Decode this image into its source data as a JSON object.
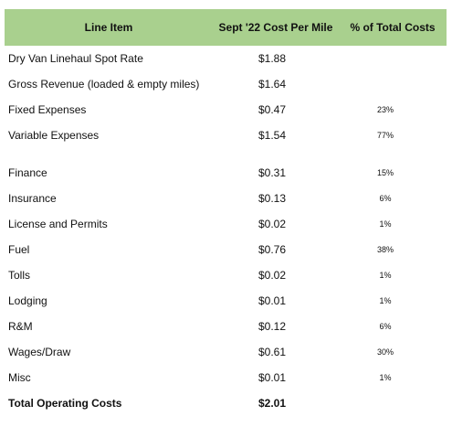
{
  "table": {
    "headers": [
      "Line Item",
      "Sept '22 Cost Per Mile",
      "% of Total Costs"
    ],
    "rows_top": [
      {
        "item": "Dry Van Linehaul Spot Rate",
        "cost": "$1.88",
        "pct": ""
      },
      {
        "item": "Gross Revenue (loaded & empty miles)",
        "cost": "$1.64",
        "pct": ""
      },
      {
        "item": "Fixed Expenses",
        "cost": "$0.47",
        "pct": "23%"
      },
      {
        "item": "Variable Expenses",
        "cost": "$1.54",
        "pct": "77%"
      }
    ],
    "rows_detail": [
      {
        "item": "Finance",
        "cost": "$0.31",
        "pct": "15%"
      },
      {
        "item": "Insurance",
        "cost": "$0.13",
        "pct": "6%"
      },
      {
        "item": "License and Permits",
        "cost": "$0.02",
        "pct": "1%"
      },
      {
        "item": "Fuel",
        "cost": "$0.76",
        "pct": "38%"
      },
      {
        "item": "Tolls",
        "cost": "$0.02",
        "pct": "1%"
      },
      {
        "item": "Lodging",
        "cost": "$0.01",
        "pct": "1%"
      },
      {
        "item": "R&M",
        "cost": "$0.12",
        "pct": "6%"
      },
      {
        "item": "Wages/Draw",
        "cost": "$0.61",
        "pct": "30%"
      },
      {
        "item": "Misc",
        "cost": "$0.01",
        "pct": "1%"
      }
    ],
    "total": {
      "item": "Total Operating Costs",
      "cost": "$2.01",
      "pct": ""
    },
    "header_color": "#a9d08e"
  }
}
